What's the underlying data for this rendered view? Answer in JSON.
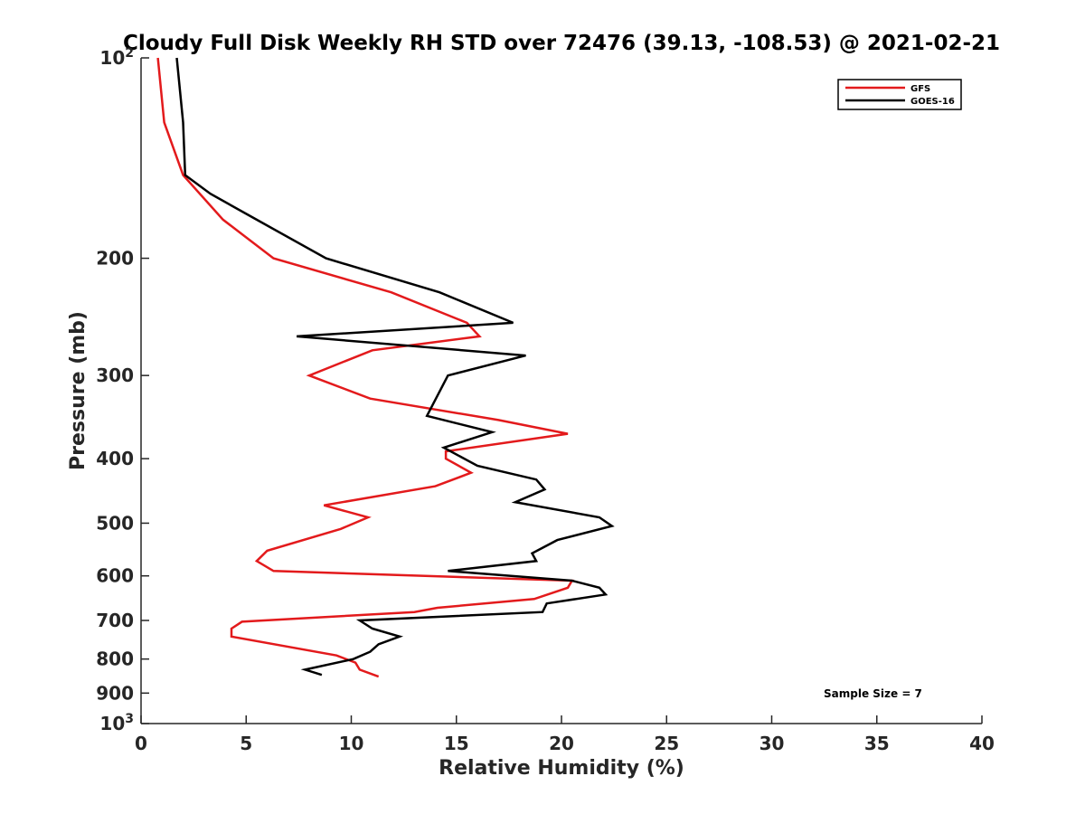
{
  "chart_data": {
    "type": "line",
    "title": "Cloudy Full Disk Weekly RH STD over 72476 (39.13, -108.53) @ 2021-02-21",
    "xlabel": "Relative Humidity (%)",
    "ylabel": "Pressure (mb)",
    "xlim": [
      0,
      40
    ],
    "ylim": [
      100,
      1000
    ],
    "yscale": "log",
    "y_reversed": true,
    "grid": false,
    "legend_position": "top-right",
    "x_ticks": [
      0,
      5,
      10,
      15,
      20,
      25,
      30,
      35,
      40
    ],
    "x_tick_labels": [
      "0",
      "5",
      "10",
      "15",
      "20",
      "25",
      "30",
      "35",
      "40"
    ],
    "y_ticks": [
      100,
      200,
      300,
      400,
      500,
      600,
      700,
      800,
      900,
      1000
    ],
    "y_tick_labels": [
      {
        "base": "10",
        "exp": "2"
      },
      {
        "base": "200",
        "exp": ""
      },
      {
        "base": "300",
        "exp": ""
      },
      {
        "base": "400",
        "exp": ""
      },
      {
        "base": "500",
        "exp": ""
      },
      {
        "base": "600",
        "exp": ""
      },
      {
        "base": "700",
        "exp": ""
      },
      {
        "base": "800",
        "exp": ""
      },
      {
        "base": "900",
        "exp": ""
      },
      {
        "base": "10",
        "exp": "3"
      }
    ],
    "series": [
      {
        "name": "GFS",
        "color": "#e31a1c",
        "x": [
          0.8,
          1.1,
          2.0,
          3.9,
          6.3,
          11.9,
          15.5,
          16.1,
          11.0,
          8.0,
          10.9,
          17.0,
          20.3,
          14.5,
          14.5,
          15.7,
          14.0,
          8.7,
          10.8,
          9.5,
          6.0,
          5.5,
          6.3,
          20.5,
          20.3,
          18.7,
          14.1,
          13.0,
          4.8,
          4.3,
          4.3,
          9.3,
          10.2,
          10.4,
          11.3
        ],
        "y": [
          100,
          125,
          150,
          175,
          200,
          225,
          250,
          262,
          275,
          300,
          325,
          350,
          367,
          390,
          400,
          420,
          440,
          470,
          490,
          510,
          550,
          570,
          590,
          610,
          625,
          650,
          670,
          680,
          703,
          720,
          740,
          790,
          810,
          830,
          850
        ]
      },
      {
        "name": "GOES-16",
        "color": "#000000",
        "x": [
          1.7,
          2.0,
          2.1,
          3.3,
          5.5,
          8.8,
          14.2,
          17.7,
          7.4,
          18.3,
          14.6,
          13.6,
          16.7,
          14.4,
          16.0,
          18.8,
          19.2,
          17.8,
          21.8,
          22.4,
          19.8,
          18.6,
          18.8,
          14.6,
          20.5,
          21.8,
          22.1,
          19.3,
          19.1,
          10.4,
          11.0,
          12.3,
          11.3,
          10.9,
          10.1,
          7.8,
          8.6
        ],
        "y": [
          100,
          125,
          150,
          160,
          175,
          200,
          225,
          250,
          262,
          280,
          300,
          345,
          365,
          385,
          410,
          430,
          445,
          465,
          490,
          505,
          530,
          555,
          570,
          590,
          610,
          625,
          640,
          660,
          680,
          700,
          720,
          740,
          760,
          780,
          800,
          830,
          845
        ]
      }
    ],
    "annotations": [
      "Sample Size = 7"
    ]
  }
}
